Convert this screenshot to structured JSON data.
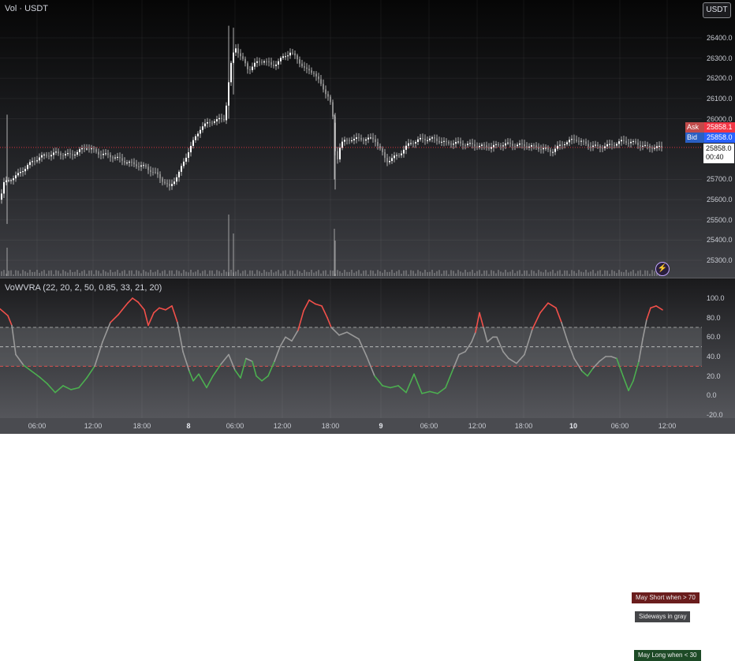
{
  "header": {
    "symbol_label": "Vol · USDT",
    "symbol_button": "USDT"
  },
  "price_tags": {
    "ask_label": "Ask",
    "ask_value": "25858.1",
    "bid_label": "Bid",
    "bid_value": "25858.0",
    "last_value": "25858.0",
    "countdown": "00:40"
  },
  "indicator": {
    "label": "VoWVRA (22, 20, 2, 50, 0.85, 33, 21, 20)",
    "short_note": "May Short when > 70",
    "sideways_note": "Sideways in gray",
    "long_note": "May Long when < 30"
  },
  "colors": {
    "overbought": "#f2504a",
    "oversold": "#4caf50",
    "neutral": "#9a9a9a",
    "candle": "#d9d9d9",
    "last_price_line": "#f23645",
    "volume": "#cfcfcf"
  },
  "chart_data": [
    {
      "type": "candlestick",
      "title": "",
      "ylim": [
        25200,
        26500
      ],
      "yticks": [
        "26400.0",
        "26300.0",
        "26200.0",
        "26100.0",
        "26000.0",
        "25700.0",
        "25600.0",
        "25500.0",
        "25400.0",
        "25300.0"
      ],
      "x_ticks": [
        "06:00",
        "12:00",
        "18:00",
        "8",
        "06:00",
        "12:00",
        "18:00",
        "9",
        "06:00",
        "12:00",
        "18:00",
        "10",
        "06:00",
        "12:00"
      ],
      "last_price": 25858.0,
      "close_path": [
        [
          0,
          25600
        ],
        [
          5,
          25680
        ],
        [
          12,
          25700
        ],
        [
          22,
          25720
        ],
        [
          35,
          25770
        ],
        [
          50,
          25810
        ],
        [
          70,
          25830
        ],
        [
          90,
          25820
        ],
        [
          110,
          25860
        ],
        [
          125,
          25830
        ],
        [
          145,
          25810
        ],
        [
          165,
          25780
        ],
        [
          185,
          25760
        ],
        [
          200,
          25720
        ],
        [
          215,
          25660
        ],
        [
          228,
          25740
        ],
        [
          240,
          25850
        ],
        [
          255,
          25960
        ],
        [
          270,
          25990
        ],
        [
          285,
          26000
        ],
        [
          292,
          26250
        ],
        [
          298,
          26360
        ],
        [
          305,
          26310
        ],
        [
          315,
          26240
        ],
        [
          322,
          26270
        ],
        [
          335,
          26290
        ],
        [
          345,
          26260
        ],
        [
          358,
          26300
        ],
        [
          368,
          26330
        ],
        [
          378,
          26290
        ],
        [
          388,
          26240
        ],
        [
          398,
          26230
        ],
        [
          408,
          26160
        ],
        [
          418,
          26100
        ],
        [
          423,
          25980
        ],
        [
          426,
          25770
        ],
        [
          432,
          25880
        ],
        [
          445,
          25900
        ],
        [
          460,
          25900
        ],
        [
          475,
          25900
        ],
        [
          490,
          25790
        ],
        [
          505,
          25820
        ],
        [
          520,
          25880
        ],
        [
          535,
          25900
        ],
        [
          550,
          25900
        ],
        [
          565,
          25880
        ],
        [
          580,
          25880
        ],
        [
          600,
          25870
        ],
        [
          620,
          25860
        ],
        [
          640,
          25875
        ],
        [
          660,
          25870
        ],
        [
          680,
          25860
        ],
        [
          700,
          25840
        ],
        [
          715,
          25880
        ],
        [
          730,
          25900
        ],
        [
          745,
          25870
        ],
        [
          760,
          25860
        ],
        [
          775,
          25870
        ],
        [
          790,
          25890
        ],
        [
          805,
          25880
        ],
        [
          820,
          25860
        ],
        [
          840,
          25858
        ]
      ]
    },
    {
      "type": "line",
      "title": "",
      "ylim": [
        -20,
        120
      ],
      "yticks": [
        "100.0",
        "80.0",
        "60.0",
        "40.0",
        "20.0",
        "0.0",
        "-20.0"
      ],
      "upper_level": 70,
      "mid_level": 50,
      "lower_level": 30,
      "series": [
        {
          "points": [
            [
              0,
              89
            ],
            [
              10,
              82
            ],
            [
              15,
              72
            ],
            [
              20,
              42
            ],
            [
              30,
              31
            ],
            [
              40,
              25
            ],
            [
              50,
              19
            ],
            [
              60,
              12
            ],
            [
              70,
              3
            ],
            [
              80,
              10
            ],
            [
              90,
              6
            ],
            [
              100,
              8
            ],
            [
              110,
              18
            ],
            [
              120,
              30
            ],
            [
              130,
              55
            ],
            [
              140,
              75
            ],
            [
              150,
              83
            ],
            [
              155,
              88
            ],
            [
              162,
              95
            ],
            [
              168,
              100
            ],
            [
              175,
              96
            ],
            [
              183,
              88
            ],
            [
              188,
              72
            ],
            [
              195,
              85
            ],
            [
              202,
              90
            ],
            [
              210,
              88
            ],
            [
              218,
              92
            ],
            [
              225,
              75
            ],
            [
              232,
              45
            ],
            [
              240,
              25
            ],
            [
              245,
              15
            ],
            [
              252,
              22
            ],
            [
              262,
              8
            ],
            [
              270,
              20
            ],
            [
              280,
              32
            ],
            [
              290,
              42
            ],
            [
              298,
              26
            ],
            [
              305,
              18
            ],
            [
              312,
              38
            ],
            [
              320,
              35
            ],
            [
              325,
              20
            ],
            [
              332,
              15
            ],
            [
              340,
              20
            ],
            [
              348,
              35
            ],
            [
              355,
              50
            ],
            [
              362,
              60
            ],
            [
              370,
              56
            ],
            [
              378,
              67
            ],
            [
              385,
              87
            ],
            [
              392,
              98
            ],
            [
              400,
              94
            ],
            [
              408,
              92
            ],
            [
              415,
              80
            ],
            [
              420,
              70
            ],
            [
              430,
              62
            ],
            [
              440,
              65
            ],
            [
              455,
              58
            ],
            [
              465,
              40
            ],
            [
              475,
              20
            ],
            [
              485,
              10
            ],
            [
              495,
              8
            ],
            [
              505,
              10
            ],
            [
              515,
              3
            ],
            [
              525,
              22
            ],
            [
              535,
              2
            ],
            [
              545,
              4
            ],
            [
              555,
              2
            ],
            [
              565,
              8
            ],
            [
              575,
              28
            ],
            [
              582,
              42
            ],
            [
              590,
              45
            ],
            [
              598,
              55
            ],
            [
              603,
              65
            ],
            [
              608,
              85
            ],
            [
              613,
              70
            ],
            [
              618,
              55
            ],
            [
              625,
              60
            ],
            [
              630,
              60
            ],
            [
              638,
              45
            ],
            [
              645,
              38
            ],
            [
              655,
              33
            ],
            [
              665,
              42
            ],
            [
              675,
              68
            ],
            [
              685,
              85
            ],
            [
              695,
              95
            ],
            [
              705,
              90
            ],
            [
              712,
              75
            ],
            [
              720,
              55
            ],
            [
              728,
              38
            ],
            [
              738,
              25
            ],
            [
              745,
              20
            ],
            [
              752,
              28
            ],
            [
              760,
              35
            ],
            [
              768,
              40
            ],
            [
              775,
              40
            ],
            [
              782,
              38
            ],
            [
              790,
              20
            ],
            [
              797,
              5
            ],
            [
              803,
              15
            ],
            [
              810,
              35
            ],
            [
              815,
              58
            ],
            [
              820,
              78
            ],
            [
              825,
              90
            ],
            [
              832,
              92
            ],
            [
              840,
              88
            ]
          ]
        }
      ]
    }
  ]
}
